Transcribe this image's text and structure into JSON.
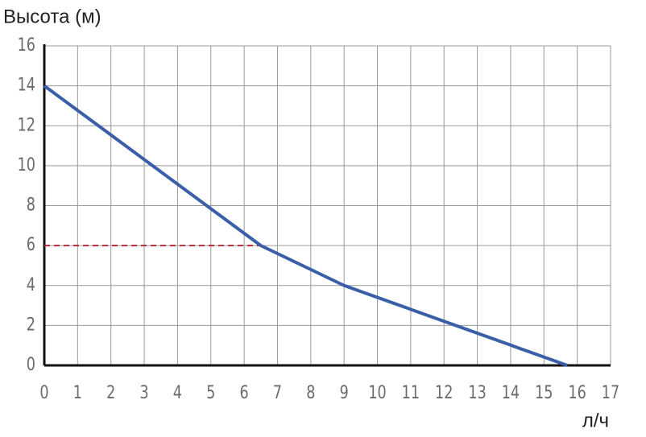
{
  "chart_data": {
    "type": "line",
    "y_label": "Высота (м)",
    "x_label": "л/ч",
    "xlim": [
      0,
      17
    ],
    "xticks": [
      0,
      1,
      2,
      3,
      4,
      5,
      6,
      7,
      8,
      9,
      10,
      11,
      12,
      13,
      14,
      15,
      16,
      17
    ],
    "ylim": [
      0,
      16
    ],
    "yticks": [
      0,
      2,
      4,
      6,
      8,
      10,
      12,
      14,
      16
    ],
    "grid": true,
    "series": [
      {
        "color": "#3a5fa8",
        "x": [
          0,
          6.5,
          9,
          15.7
        ],
        "values": [
          14,
          6,
          4,
          0
        ]
      }
    ],
    "reference_point": {
      "x": 6.5,
      "y": 6,
      "color": "#b22a3a"
    }
  }
}
